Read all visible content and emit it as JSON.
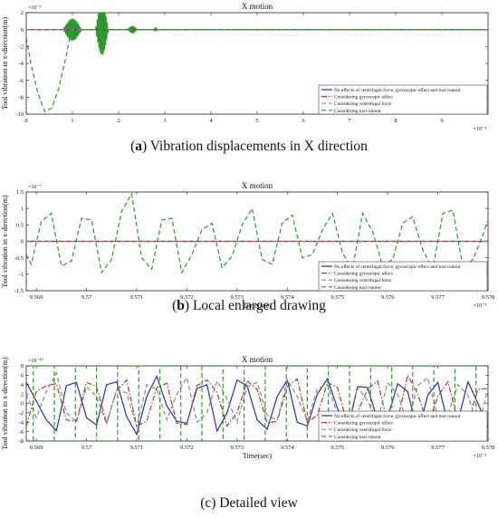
{
  "captions": [
    {
      "letter": "a",
      "text": " Vibration displacements in X direction"
    },
    {
      "letter": "b",
      "text": " Local enlarged drawing"
    },
    {
      "letter": "c",
      "text": " Detailed view"
    }
  ],
  "chart_data": [
    {
      "type": "line",
      "title": "X motion",
      "xlabel": "",
      "ylabel": "Tool vibration in x-direction(m)",
      "x_exponent": "×10⁻³",
      "y_exponent": "×10⁻⁵",
      "xlim": [
        0,
        10
      ],
      "ylim": [
        -10,
        2
      ],
      "xticks": [
        0,
        1,
        2,
        3,
        4,
        5,
        6,
        7,
        8,
        9
      ],
      "xticklabels": [
        "0",
        "1",
        "2",
        "3",
        "4",
        "5",
        "6",
        "7",
        "8",
        "9"
      ],
      "yticks": [
        2,
        0,
        -2,
        -4,
        -6,
        -8,
        -10
      ],
      "yticklabels": [
        "2",
        "0",
        "-2",
        "-4",
        "-6",
        "-8",
        "-10"
      ],
      "legend_position": "bottom-right",
      "grid": false,
      "series": [
        {
          "name": "No effects of centrifugal force, gyroscopic effect and tool runout",
          "color": "#1f2fb5",
          "dash": "solid",
          "x": [
            0,
            10
          ],
          "y": [
            0,
            0
          ]
        },
        {
          "name": "Considering gyroscopic effect",
          "color": "#b03a2e",
          "dash": "dashdot",
          "x": [
            0,
            10
          ],
          "y": [
            0,
            0
          ]
        },
        {
          "name": "Considering centrifugal force",
          "color": "#8a8a8a",
          "dash": "dash",
          "x": [
            0,
            10
          ],
          "y": [
            0,
            0
          ]
        },
        {
          "name": "Considering tool runout",
          "color": "#2a9a2a",
          "dash": "dash",
          "x": [
            0,
            0.1,
            0.25,
            0.4,
            0.55,
            0.7,
            0.85,
            0.95,
            1.05,
            1.2,
            1.4,
            1.6,
            1.8,
            2.0,
            2.3,
            2.6,
            2.8,
            3.2,
            4,
            6,
            8,
            10
          ],
          "y": [
            -1.0,
            -4.0,
            -7.5,
            -9.7,
            -9.3,
            -7.0,
            -3.5,
            -0.8,
            0.6,
            0.0,
            0.0,
            0.0,
            0.0,
            0.0,
            0.0,
            0.0,
            0.0,
            0.0,
            0.0,
            0.0,
            0.0,
            0.0
          ]
        }
      ],
      "bursts": [
        {
          "x": [
            0.8,
            1.2
          ],
          "amp": 1.3
        },
        {
          "x": [
            1.5,
            1.78
          ],
          "amp": 3.0
        },
        {
          "x": [
            2.2,
            2.4
          ],
          "amp": 0.45
        },
        {
          "x": [
            2.75,
            2.85
          ],
          "amp": 0.15
        }
      ]
    },
    {
      "type": "line",
      "title": "X motion",
      "xlabel": "Time(sec)",
      "ylabel": "Tool vibration in x-direction(m)",
      "x_exponent": "×10⁻³",
      "y_exponent": "×10⁻⁷",
      "xlim": [
        9.5688,
        9.578
      ],
      "ylim": [
        -1.5,
        1.5
      ],
      "xticks": [
        9.569,
        9.57,
        9.571,
        9.572,
        9.573,
        9.574,
        9.575,
        9.576,
        9.577,
        9.578
      ],
      "xticklabels": [
        "9.569",
        "9.57",
        "9.571",
        "9.572",
        "9.573",
        "9.574",
        "9.575",
        "9.576",
        "9.577",
        "9.578"
      ],
      "yticks": [
        1.5,
        1,
        0.5,
        0,
        -0.5,
        -1,
        -1.5
      ],
      "yticklabels": [
        "1.5",
        "1",
        "0.5",
        "0",
        "-0.5",
        "-1",
        "-1.5"
      ],
      "legend_position": "bottom-right",
      "grid": false,
      "series": [
        {
          "name": "No effects of centrifugal force, gyroscopic effect and tool runout",
          "color": "#1f2fb5",
          "dash": "solid",
          "x": [
            9.5688,
            9.578
          ],
          "y": [
            0,
            0
          ]
        },
        {
          "name": "Considering gyroscopic effect",
          "color": "#b03a2e",
          "dash": "dashdot",
          "x": [
            9.5688,
            9.578
          ],
          "y": [
            0,
            0
          ]
        },
        {
          "name": "Considering centrifugal force",
          "color": "#8a8a8a",
          "dash": "dash",
          "x": [
            9.5688,
            9.578
          ],
          "y": [
            0,
            0
          ]
        },
        {
          "name": "Considering tool runout",
          "color": "#2a9a2a",
          "dash": "dash",
          "x": [
            9.5688,
            9.5689,
            9.5691,
            9.5693,
            9.5695,
            9.5697,
            9.5699,
            9.5701,
            9.5703,
            9.5705,
            9.5707,
            9.5709,
            9.5711,
            9.5713,
            9.5715,
            9.5717,
            9.5719,
            9.5721,
            9.5723,
            9.5725,
            9.5727,
            9.5729,
            9.5731,
            9.5733,
            9.5735,
            9.5737,
            9.5739,
            9.5741,
            9.5743,
            9.5745,
            9.5747,
            9.5749,
            9.5751,
            9.5753,
            9.5755,
            9.5757,
            9.5759,
            9.5761,
            9.5763,
            9.5765,
            9.5767,
            9.5769,
            9.5771,
            9.5773,
            9.5775,
            9.5777,
            9.5779,
            9.578
          ],
          "y": [
            -0.4,
            -0.7,
            0.6,
            0.85,
            -0.75,
            -0.6,
            0.7,
            0.65,
            -0.95,
            -0.55,
            0.9,
            1.45,
            -0.5,
            -0.85,
            0.65,
            0.7,
            -0.95,
            -0.4,
            0.35,
            0.55,
            -0.8,
            -0.45,
            0.5,
            1.0,
            -0.55,
            -0.7,
            0.55,
            0.8,
            -0.5,
            -0.4,
            0.35,
            0.85,
            -0.35,
            -0.85,
            0.85,
            0.3,
            -0.75,
            -0.55,
            0.55,
            0.75,
            -0.25,
            -0.85,
            0.85,
            0.95,
            -0.8,
            -0.55,
            0.2,
            0.65
          ]
        }
      ]
    },
    {
      "type": "line",
      "title": "X motion",
      "xlabel": "Time(sec)",
      "ylabel": "Tool vibration in x-direction(m)",
      "x_exponent": "×10⁻³",
      "y_exponent": "×10⁻¹⁰",
      "xlim": [
        9.5688,
        9.578
      ],
      "ylim": [
        -8,
        8
      ],
      "xticks": [
        9.569,
        9.57,
        9.571,
        9.572,
        9.573,
        9.574,
        9.575,
        9.576,
        9.577,
        9.578
      ],
      "xticklabels": [
        "9.569",
        "9.57",
        "9.571",
        "9.572",
        "9.573",
        "9.574",
        "9.575",
        "9.576",
        "9.577",
        "9.578"
      ],
      "yticks": [
        8,
        6,
        4,
        2,
        0,
        -2,
        -4,
        -6,
        -8
      ],
      "yticklabels": [
        "8",
        "6",
        "4",
        "2",
        "0",
        "-2",
        "-4",
        "-6",
        "-8"
      ],
      "legend_position": "bottom-right",
      "grid": false,
      "series": [
        {
          "name": "No effects of centrifugal force, gyroscopic effect and tool runout",
          "color": "#1f2fb5",
          "dash": "solid",
          "x": [
            9.5688,
            9.569,
            9.5692,
            9.5694,
            9.5696,
            9.5698,
            9.57,
            9.5702,
            9.5704,
            9.5706,
            9.5708,
            9.571,
            9.5712,
            9.5714,
            9.5716,
            9.5718,
            9.572,
            9.5722,
            9.5724,
            9.5726,
            9.5728,
            9.573,
            9.5732,
            9.5734,
            9.5736,
            9.5738,
            9.574,
            9.5742,
            9.5744,
            9.5746,
            9.5748,
            9.575,
            9.5752,
            9.5754,
            9.5756,
            9.5758,
            9.576,
            9.5762,
            9.5764,
            9.5766,
            9.5768,
            9.577,
            9.5772,
            9.5774,
            9.5776,
            9.5778,
            9.578
          ],
          "y": [
            4.5,
            0.5,
            -3.5,
            -5.8,
            3.8,
            4.5,
            -3.0,
            -4.6,
            4.0,
            4.6,
            -2.8,
            -6.6,
            1.5,
            5.8,
            -0.5,
            -3.8,
            -4.2,
            3.2,
            4.0,
            -5.9,
            -2.0,
            5.0,
            3.8,
            -3.5,
            -5.5,
            1.5,
            5.0,
            -4.0,
            -4.8,
            2.0,
            5.2,
            -1.0,
            -6.0,
            3.6,
            3.4,
            -3.5,
            -3.0,
            4.2,
            2.5,
            -6.4,
            1.8,
            4.5,
            -4.2,
            -3.8,
            4.6,
            0.0,
            -5.2
          ]
        },
        {
          "name": "Considering gyroscopic effect",
          "color": "#b03a2e",
          "dash": "dashdot",
          "x": [
            9.5688,
            9.569,
            9.5692,
            9.5694,
            9.5696,
            9.5698,
            9.57,
            9.5702,
            9.5704,
            9.5706,
            9.5708,
            9.571,
            9.5712,
            9.5714,
            9.5716,
            9.5718,
            9.572,
            9.5722,
            9.5724,
            9.5726,
            9.5728,
            9.573,
            9.5732,
            9.5734,
            9.5736,
            9.5738,
            9.574,
            9.5742,
            9.5744,
            9.5746,
            9.5748,
            9.575,
            9.5752,
            9.5754,
            9.5756,
            9.5758,
            9.576,
            9.5762,
            9.5764,
            9.5766,
            9.5768,
            9.577,
            9.5772,
            9.5774,
            9.5776,
            9.5778,
            9.578
          ],
          "y": [
            -4.8,
            2.5,
            3.8,
            4.2,
            -3.5,
            -3.8,
            4.5,
            3.6,
            -4.2,
            2.8,
            5.0,
            -4.8,
            -3.8,
            3.4,
            4.3,
            -4.2,
            -4.5,
            3.8,
            5.0,
            2.4,
            -4.8,
            -2.0,
            4.8,
            3.0,
            -4.2,
            -3.8,
            3.6,
            5.2,
            -4.0,
            -2.5,
            4.5,
            3.4,
            -4.6,
            -1.8,
            3.0,
            4.8,
            -4.2,
            -3.5,
            6.0,
            2.0,
            -4.6,
            1.5,
            4.6,
            -3.8,
            -4.0,
            3.0,
            3.2
          ]
        },
        {
          "name": "Considering centrifugal force",
          "color": "#8a8a8a",
          "dash": "dash",
          "x": [
            9.5688,
            9.569,
            9.5692,
            9.5694,
            9.5696,
            9.5698,
            9.57,
            9.5702,
            9.5704,
            9.5706,
            9.5708,
            9.571,
            9.5712,
            9.5714,
            9.5716,
            9.5718,
            9.572,
            9.5722,
            9.5724,
            9.5726,
            9.5728,
            9.573,
            9.5732,
            9.5734,
            9.5736,
            9.5738,
            9.574,
            9.5742,
            9.5744,
            9.5746,
            9.5748,
            9.575,
            9.5752,
            9.5754,
            9.5756,
            9.5758,
            9.576,
            9.5762,
            9.5764,
            9.5766,
            9.5768,
            9.577,
            9.5772,
            9.5774,
            9.5776,
            9.5778,
            9.578
          ],
          "y": [
            2.0,
            -3.0,
            2.5,
            6.5,
            -2.0,
            -4.0,
            3.5,
            1.5,
            -4.5,
            3.0,
            2.2,
            -5.0,
            4.0,
            3.0,
            -3.5,
            2.0,
            5.5,
            -4.0,
            -2.0,
            4.8,
            1.0,
            -4.0,
            3.5,
            4.5,
            -2.5,
            -3.5,
            5.0,
            1.5,
            -3.8,
            3.2,
            4.0,
            -2.2,
            -4.8,
            3.6,
            0.5,
            -3.6,
            4.4,
            2.0,
            -4.4,
            3.8,
            5.5,
            -3.0,
            -2.4,
            4.0,
            1.8,
            -5.0,
            3.0
          ]
        },
        {
          "name": "Considering tool runout",
          "color": "#2a9a2a",
          "dash": "dash",
          "x": [
            9.5688,
            9.56894,
            9.56894,
            9.56936,
            9.56936,
            9.56978,
            9.56978,
            9.5702,
            9.5702,
            9.57062,
            9.57062,
            9.57104,
            9.57104,
            9.57146,
            9.57146,
            9.57188,
            9.57188,
            9.5723,
            9.5723,
            9.57272,
            9.57272,
            9.57314,
            9.57314,
            9.57356,
            9.57356,
            9.57398,
            9.57398,
            9.5744,
            9.5744,
            9.57482,
            9.57482,
            9.57524,
            9.57524,
            9.57566,
            9.57566,
            9.57608,
            9.57608,
            9.5765,
            9.5765,
            9.57692,
            9.57692,
            9.57734,
            9.57734,
            9.57776,
            9.57776,
            9.578
          ],
          "y": [
            -8,
            -8,
            8,
            8,
            -8,
            -8,
            8,
            8,
            -8,
            -8,
            8,
            8,
            -8,
            -8,
            8,
            8,
            -8,
            -8,
            8,
            8,
            -8,
            -8,
            8,
            8,
            -8,
            -8,
            8,
            8,
            -8,
            -8,
            8,
            8,
            -8,
            -8,
            8,
            8,
            -8,
            -8,
            8,
            8,
            -8,
            -8,
            8,
            8,
            -8,
            -8
          ]
        }
      ]
    }
  ]
}
